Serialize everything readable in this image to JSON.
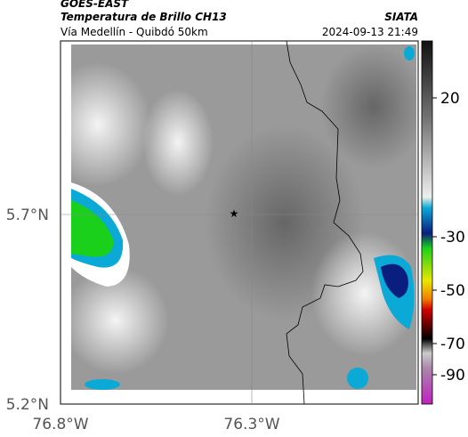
{
  "header": {
    "source": "GOES-EAST",
    "product": "Temperatura de Brillo CH13",
    "region": "Vía Medellín - Quibdó 50km",
    "agency": "SIATA",
    "datetime": "2024-09-13 21:49"
  },
  "map": {
    "lat_labels": [
      "5.7°N",
      "5.2°N"
    ],
    "lon_labels": [
      "76.8°W",
      "76.3°W"
    ]
  },
  "colorbar": {
    "ticks": [
      20,
      -30,
      -50,
      -70,
      -90
    ]
  }
}
